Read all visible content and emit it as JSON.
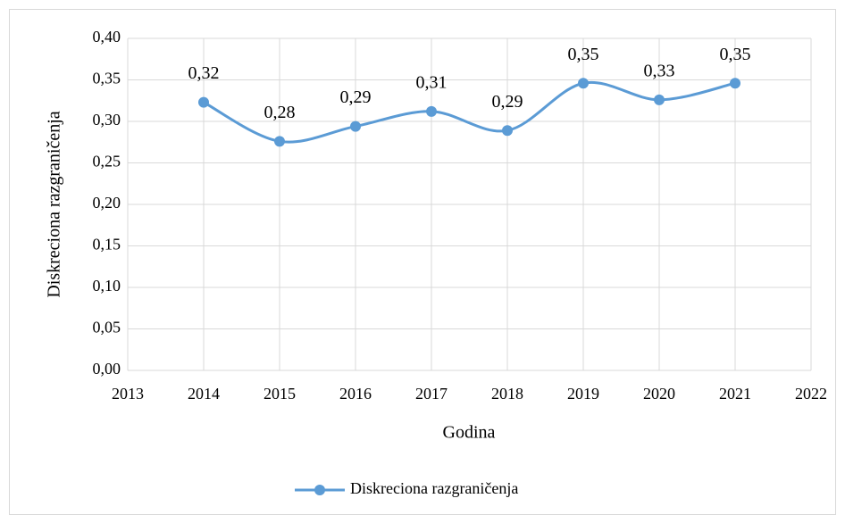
{
  "chart_data": {
    "type": "line",
    "x_label": "Godina",
    "y_label": "Diskreciona razgraničenja",
    "x": [
      2014,
      2015,
      2016,
      2017,
      2018,
      2019,
      2020,
      2021
    ],
    "series": [
      {
        "name": "Diskreciona razgraničenja",
        "color": "#5b9bd5",
        "values": [
          0.323,
          0.276,
          0.294,
          0.312,
          0.289,
          0.346,
          0.326,
          0.346
        ],
        "value_labels": [
          "0,32",
          "0,28",
          "0,29",
          "0,31",
          "0,29",
          "0,35",
          "0,33",
          "0,35"
        ]
      }
    ],
    "smooth": true,
    "xlim": [
      2013,
      2022
    ],
    "xticks": [
      2013,
      2014,
      2015,
      2016,
      2017,
      2018,
      2019,
      2020,
      2021,
      2022
    ],
    "ylim": [
      0,
      0.4
    ],
    "yticks": [
      {
        "value": 0,
        "label": "0,00"
      },
      {
        "value": 0.05,
        "label": "0,05"
      },
      {
        "value": 0.1,
        "label": "0,10"
      },
      {
        "value": 0.15,
        "label": "0,15"
      },
      {
        "value": 0.2,
        "label": "0,20"
      },
      {
        "value": 0.25,
        "label": "0,25"
      },
      {
        "value": 0.3,
        "label": "0,30"
      },
      {
        "value": 0.35,
        "label": "0,35"
      },
      {
        "value": 0.4,
        "label": "0,40"
      }
    ],
    "grid": true,
    "legend": "bottom"
  }
}
